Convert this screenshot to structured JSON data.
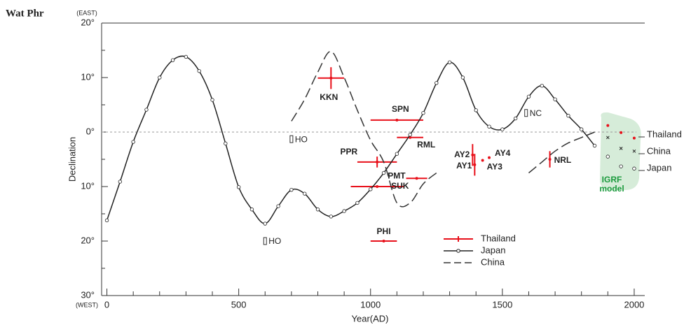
{
  "title": "Wat Phr",
  "chart_data": {
    "type": "line",
    "x_label": "Year(AD)",
    "y_label": "Declination",
    "y_top_note": "(EAST)",
    "y_bottom_note": "(WEST)",
    "xlim": [
      -20,
      2040
    ],
    "xticks": [
      0,
      500,
      1000,
      1500,
      2000
    ],
    "xminor_ticks": [
      100,
      200,
      300,
      400,
      600,
      700,
      800,
      900,
      1100,
      1200,
      1300,
      1400,
      1600,
      1700,
      1800,
      1900
    ],
    "ylim": [
      -30,
      20
    ],
    "yticks": [
      {
        "value": 20,
        "label": "20°"
      },
      {
        "value": 10,
        "label": "10°"
      },
      {
        "value": 0,
        "label": "0°"
      },
      {
        "value": -10,
        "label": "10°"
      },
      {
        "value": -20,
        "label": "20°"
      },
      {
        "value": -30,
        "label": "30°"
      }
    ],
    "yminor_ticks": [
      15,
      5,
      -5,
      -15,
      -25
    ],
    "reference_line": 0,
    "series": [
      {
        "name": "Thailand",
        "color": "#e8101a",
        "style": "errorbar",
        "labels": [
          "KKN",
          "SPN",
          "RML",
          "PPR",
          "PMT",
          "SUK",
          "PHI",
          "AY2",
          "AY1",
          "AY3",
          "AY4",
          "NRL"
        ],
        "x": [
          850,
          1100,
          1150,
          1025,
          1175,
          1025,
          1050,
          1387,
          1395,
          1425,
          1450,
          1680
        ],
        "values": [
          9.9,
          2.2,
          -1,
          -5.5,
          -8.5,
          -10,
          -20,
          -4.2,
          -6,
          -5.2,
          -4.7,
          -5
        ],
        "xerr": [
          50,
          100,
          50,
          75,
          40,
          100,
          50,
          null,
          null,
          null,
          null,
          null
        ],
        "yerr": [
          2,
          null,
          null,
          1,
          null,
          null,
          null,
          2,
          2,
          null,
          null,
          1.5
        ]
      },
      {
        "name": "Japan",
        "color": "#222222",
        "style": "solid",
        "marker": "circle",
        "x": [
          0,
          50,
          100,
          150,
          200,
          250,
          300,
          350,
          400,
          450,
          500,
          550,
          600,
          650,
          700,
          750,
          800,
          850,
          900,
          950,
          1000,
          1050,
          1100,
          1150,
          1200,
          1250,
          1300,
          1350,
          1400,
          1450,
          1500,
          1550,
          1600,
          1650,
          1700,
          1750,
          1800,
          1850
        ],
        "values": [
          -16.2,
          -9.1,
          -1.8,
          4.1,
          10,
          13.2,
          13.8,
          11.2,
          5.9,
          -2.1,
          -10.1,
          -14.2,
          -16.8,
          -13.6,
          -10.6,
          -11.3,
          -14.2,
          -15.5,
          -14.5,
          -13,
          -10.5,
          -7.5,
          -4,
          -0.5,
          3.5,
          9,
          12.8,
          10,
          4,
          1,
          0.5,
          2.5,
          6.5,
          8.5,
          6,
          3,
          0.5,
          -2.5
        ]
      },
      {
        "name": "China",
        "color": "#333333",
        "style": "dashed",
        "x": [
          700,
          750,
          800,
          850,
          900,
          950,
          1000,
          1050,
          1100,
          1150,
          1200,
          1250,
          1300,
          1600,
          1650,
          1700,
          1750,
          1800,
          1850
        ],
        "values": [
          2,
          6,
          11,
          14.8,
          10,
          4,
          -1.5,
          -5.5,
          -13,
          -13,
          -9.5,
          -7.5,
          null,
          -7.5,
          -5.5,
          -3.5,
          -2,
          -1,
          0
        ]
      }
    ],
    "annotations": [
      {
        "text": "HO",
        "x": 700,
        "y": -1.3
      },
      {
        "text": "HO",
        "x": 600,
        "y": -20
      },
      {
        "text": "NC",
        "x": 1590,
        "y": 3.5
      }
    ],
    "igrf": {
      "label": "IGRF model",
      "x": [
        1900,
        1950,
        2000
      ],
      "series": [
        {
          "name": "Thailand",
          "color": "#e8101a",
          "marker": "dot",
          "values": [
            1.2,
            -0.1,
            -1.1
          ]
        },
        {
          "name": "China",
          "color": "#222222",
          "marker": "x",
          "values": [
            -1,
            -3,
            -3.5
          ]
        },
        {
          "name": "Japan",
          "color": "#222222",
          "marker": "circle",
          "values": [
            -4.5,
            -6.3,
            -6.7
          ]
        }
      ]
    }
  }
}
